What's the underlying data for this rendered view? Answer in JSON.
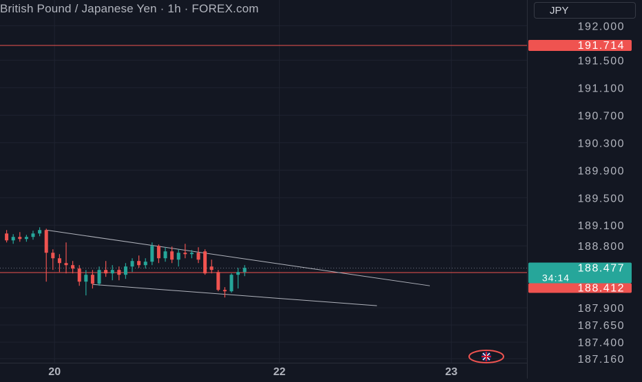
{
  "header": {
    "title": "British Pound / Japanese Yen · 1h · FOREX.com",
    "currency": "JPY"
  },
  "colors": {
    "background": "#131722",
    "grid": "#1f2330",
    "bull": "#26a69a",
    "bear": "#ef5350",
    "axis_text": "#b2b5be",
    "trendline": "#b2b5be"
  },
  "chart_data": {
    "type": "candlestick",
    "title": "British Pound / Japanese Yen · 1h · FOREX.com",
    "y_axis": {
      "tick_labels": [
        "192.000",
        "191.500",
        "191.100",
        "190.700",
        "190.300",
        "189.900",
        "189.500",
        "189.100",
        "188.800",
        "187.900",
        "187.650",
        "187.400",
        "187.160"
      ],
      "ticks": [
        192.0,
        191.5,
        191.1,
        190.7,
        190.3,
        189.9,
        189.5,
        189.1,
        188.8,
        187.9,
        187.65,
        187.4,
        187.16
      ],
      "range": [
        187.05,
        192.3
      ]
    },
    "x_axis": {
      "ticks": [
        {
          "label": "20",
          "t": 6
        },
        {
          "label": "22",
          "t": 40
        },
        {
          "label": "23",
          "t": 66
        }
      ],
      "range": [
        -1,
        76
      ]
    },
    "price_labels": {
      "level_line": {
        "value": 191.714,
        "label": "191.714"
      },
      "current": {
        "value": 188.477,
        "label": "188.477",
        "countdown": "34:14"
      },
      "bid_line": {
        "value": 188.412,
        "label": "188.412"
      }
    },
    "candles": [
      {
        "t": 0,
        "o": 188.98,
        "h": 189.03,
        "l": 188.85,
        "c": 188.88
      },
      {
        "t": 1,
        "o": 188.88,
        "h": 188.97,
        "l": 188.83,
        "c": 188.93
      },
      {
        "t": 2,
        "o": 188.93,
        "h": 189.0,
        "l": 188.86,
        "c": 188.9
      },
      {
        "t": 3,
        "o": 188.9,
        "h": 188.96,
        "l": 188.86,
        "c": 188.93
      },
      {
        "t": 4,
        "o": 188.93,
        "h": 189.02,
        "l": 188.89,
        "c": 188.98
      },
      {
        "t": 5,
        "o": 188.98,
        "h": 189.07,
        "l": 188.94,
        "c": 189.03
      },
      {
        "t": 6,
        "o": 189.03,
        "h": 189.05,
        "l": 188.28,
        "c": 188.7
      },
      {
        "t": 7,
        "o": 188.7,
        "h": 188.75,
        "l": 188.45,
        "c": 188.62
      },
      {
        "t": 8,
        "o": 188.62,
        "h": 188.68,
        "l": 188.42,
        "c": 188.55
      },
      {
        "t": 9,
        "o": 188.55,
        "h": 188.85,
        "l": 188.4,
        "c": 188.52
      },
      {
        "t": 10,
        "o": 188.52,
        "h": 188.58,
        "l": 188.4,
        "c": 188.47
      },
      {
        "t": 11,
        "o": 188.47,
        "h": 188.52,
        "l": 188.22,
        "c": 188.28
      },
      {
        "t": 12,
        "o": 188.28,
        "h": 188.45,
        "l": 188.08,
        "c": 188.38
      },
      {
        "t": 13,
        "o": 188.38,
        "h": 188.45,
        "l": 188.18,
        "c": 188.25
      },
      {
        "t": 14,
        "o": 188.25,
        "h": 188.5,
        "l": 188.22,
        "c": 188.45
      },
      {
        "t": 15,
        "o": 188.45,
        "h": 188.58,
        "l": 188.35,
        "c": 188.4
      },
      {
        "t": 16,
        "o": 188.4,
        "h": 188.52,
        "l": 188.3,
        "c": 188.45
      },
      {
        "t": 17,
        "o": 188.45,
        "h": 188.5,
        "l": 188.3,
        "c": 188.38
      },
      {
        "t": 18,
        "o": 188.38,
        "h": 188.55,
        "l": 188.32,
        "c": 188.5
      },
      {
        "t": 19,
        "o": 188.5,
        "h": 188.62,
        "l": 188.42,
        "c": 188.58
      },
      {
        "t": 20,
        "o": 188.58,
        "h": 188.66,
        "l": 188.48,
        "c": 188.52
      },
      {
        "t": 21,
        "o": 188.52,
        "h": 188.62,
        "l": 188.47,
        "c": 188.57
      },
      {
        "t": 22,
        "o": 188.57,
        "h": 188.85,
        "l": 188.52,
        "c": 188.8
      },
      {
        "t": 23,
        "o": 188.8,
        "h": 188.82,
        "l": 188.55,
        "c": 188.62
      },
      {
        "t": 24,
        "o": 188.62,
        "h": 188.78,
        "l": 188.57,
        "c": 188.72
      },
      {
        "t": 25,
        "o": 188.72,
        "h": 188.79,
        "l": 188.55,
        "c": 188.6
      },
      {
        "t": 26,
        "o": 188.6,
        "h": 188.75,
        "l": 188.5,
        "c": 188.7
      },
      {
        "t": 27,
        "o": 188.7,
        "h": 188.83,
        "l": 188.62,
        "c": 188.68
      },
      {
        "t": 28,
        "o": 188.68,
        "h": 188.74,
        "l": 188.62,
        "c": 188.7
      },
      {
        "t": 29,
        "o": 188.7,
        "h": 188.78,
        "l": 188.55,
        "c": 188.6
      },
      {
        "t": 30,
        "o": 188.72,
        "h": 188.75,
        "l": 188.38,
        "c": 188.4
      },
      {
        "t": 31,
        "o": 188.5,
        "h": 188.6,
        "l": 188.4,
        "c": 188.45
      },
      {
        "t": 32,
        "o": 188.42,
        "h": 188.45,
        "l": 188.14,
        "c": 188.16
      },
      {
        "t": 33,
        "o": 188.16,
        "h": 188.2,
        "l": 188.05,
        "c": 188.14
      },
      {
        "t": 34,
        "o": 188.14,
        "h": 188.4,
        "l": 188.12,
        "c": 188.38
      },
      {
        "t": 35,
        "o": 188.38,
        "h": 188.48,
        "l": 188.18,
        "c": 188.42
      },
      {
        "t": 36,
        "o": 188.42,
        "h": 188.52,
        "l": 188.36,
        "c": 188.48
      }
    ],
    "trendlines": [
      {
        "t1": 6,
        "p1": 189.03,
        "t2": 64,
        "p2": 188.22
      },
      {
        "t1": 13,
        "p1": 188.24,
        "t2": 56,
        "p2": 187.93
      }
    ]
  }
}
